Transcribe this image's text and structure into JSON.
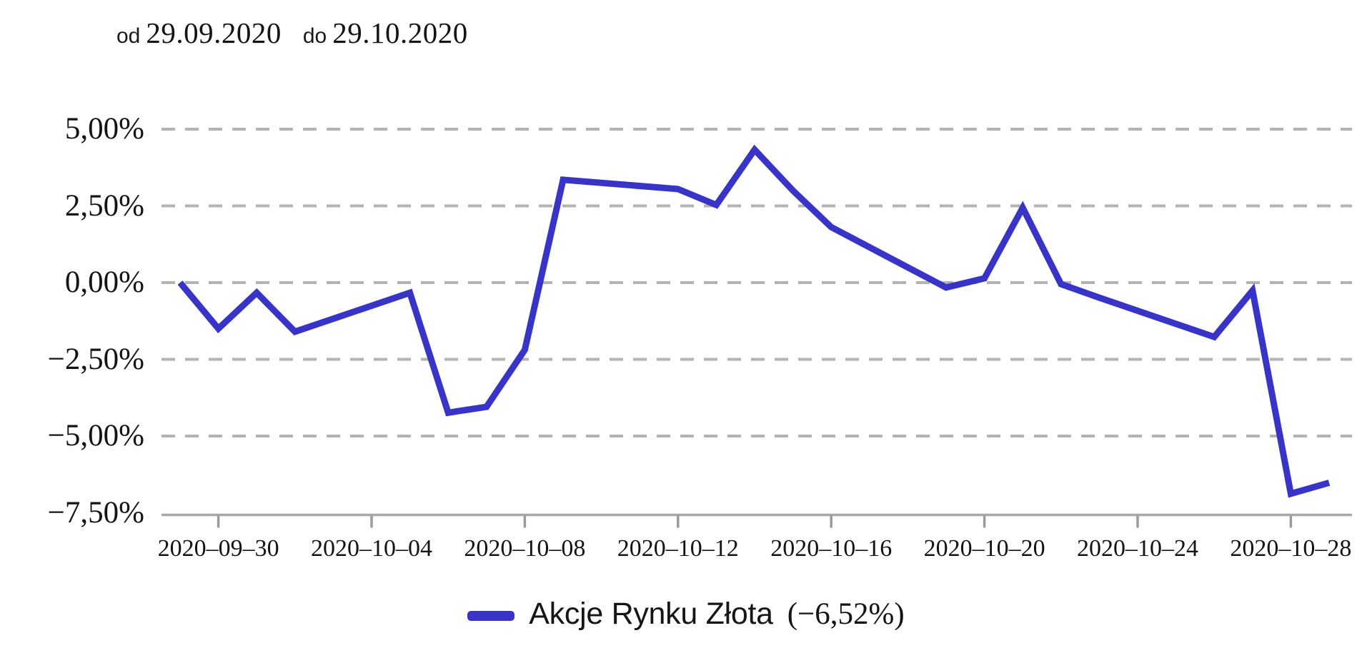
{
  "header": {
    "from_label": "od",
    "from_date": "29.09.2020",
    "to_label": "do",
    "to_date": "29.10.2020"
  },
  "legend": {
    "series_label": "Akcje Rynku Złota",
    "series_return": "(−6,52%)"
  },
  "colors": {
    "line": "#3834C8",
    "grid": "#B3B3B3",
    "axis": "#A8A8A8",
    "tick": "#9B9B9B",
    "text": "#141414"
  },
  "chart_data": {
    "type": "line",
    "title": "od 29.09.2020 do 29.10.2020",
    "xlabel": "",
    "ylabel": "",
    "ylim": [
      -7.5,
      5
    ],
    "grid": "horizontal-dashed",
    "legend_position": "bottom-center",
    "y_ticks": [
      {
        "value": 5,
        "label": "5,00%"
      },
      {
        "value": 2.5,
        "label": "2,50%"
      },
      {
        "value": 0,
        "label": "0,00%"
      },
      {
        "value": -2.5,
        "label": "−2,50%"
      },
      {
        "value": -5,
        "label": "−5,00%"
      },
      {
        "value": -7.5,
        "label": "−7,50%"
      }
    ],
    "x_ticks": [
      {
        "date": "2020-09-30",
        "label": "2020–09–30"
      },
      {
        "date": "2020-10-04",
        "label": "2020–10–04"
      },
      {
        "date": "2020-10-08",
        "label": "2020–10–08"
      },
      {
        "date": "2020-10-12",
        "label": "2020–10–12"
      },
      {
        "date": "2020-10-16",
        "label": "2020–10–16"
      },
      {
        "date": "2020-10-20",
        "label": "2020–10–20"
      },
      {
        "date": "2020-10-24",
        "label": "2020–10–24"
      },
      {
        "date": "2020-10-28",
        "label": "2020–10–28"
      }
    ],
    "series": [
      {
        "name": "Akcje Rynku Złota",
        "total_return_pct": -6.52,
        "color": "#3834C8",
        "points": [
          [
            "2020-09-29",
            0.0
          ],
          [
            "2020-09-30",
            -1.5
          ],
          [
            "2020-10-01",
            -0.33
          ],
          [
            "2020-10-02",
            -1.6
          ],
          [
            "2020-10-05",
            -0.33
          ],
          [
            "2020-10-06",
            -4.24
          ],
          [
            "2020-10-07",
            -4.05
          ],
          [
            "2020-10-08",
            -2.19
          ],
          [
            "2020-10-09",
            3.35
          ],
          [
            "2020-10-12",
            3.05
          ],
          [
            "2020-10-13",
            2.53
          ],
          [
            "2020-10-14",
            4.33
          ],
          [
            "2020-10-15",
            3.0
          ],
          [
            "2020-10-16",
            1.81
          ],
          [
            "2020-10-19",
            -0.16
          ],
          [
            "2020-10-20",
            0.14
          ],
          [
            "2020-10-21",
            2.44
          ],
          [
            "2020-10-22",
            -0.05
          ],
          [
            "2020-10-23",
            -0.49
          ],
          [
            "2020-10-26",
            -1.77
          ],
          [
            "2020-10-27",
            -0.26
          ],
          [
            "2020-10-28",
            -6.88
          ],
          [
            "2020-10-29",
            -6.52
          ]
        ]
      }
    ]
  }
}
